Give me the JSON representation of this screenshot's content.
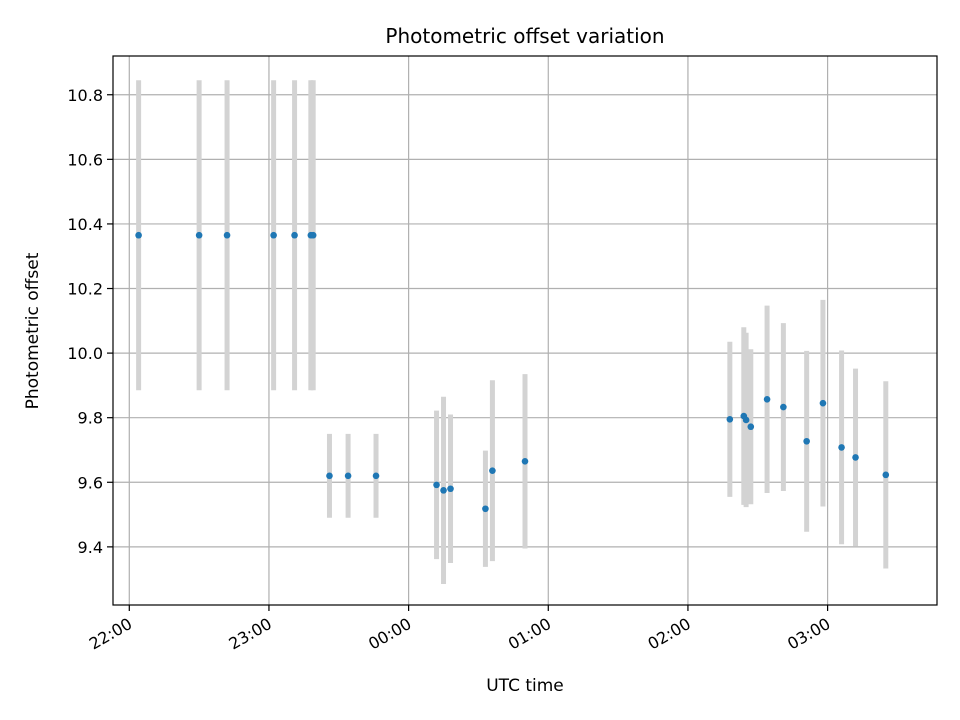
{
  "chart_data": {
    "type": "scatter",
    "title": "Photometric offset variation",
    "xlabel": "UTC time",
    "ylabel": "Photometric offset",
    "grid": true,
    "x_ticks": [
      "22:00",
      "23:00",
      "00:00",
      "01:00",
      "02:00",
      "03:00"
    ],
    "y_ticks": [
      "9.4",
      "9.6",
      "9.8",
      "10.0",
      "10.2",
      "10.4",
      "10.6",
      "10.8"
    ],
    "xlim": [
      "21:53",
      "03:47"
    ],
    "ylim": [
      9.22,
      10.92
    ],
    "colors": {
      "marker": "#1f77b4",
      "errorbar": "#d3d3d3",
      "grid": "#b0b0b0"
    },
    "points": [
      {
        "x": "22:04",
        "y": 10.365,
        "err": 0.48
      },
      {
        "x": "22:30",
        "y": 10.365,
        "err": 0.48
      },
      {
        "x": "22:42",
        "y": 10.365,
        "err": 0.48
      },
      {
        "x": "23:02",
        "y": 10.365,
        "err": 0.48
      },
      {
        "x": "23:11",
        "y": 10.365,
        "err": 0.48
      },
      {
        "x": "23:18",
        "y": 10.365,
        "err": 0.48
      },
      {
        "x": "23:19",
        "y": 10.365,
        "err": 0.48
      },
      {
        "x": "23:26",
        "y": 9.62,
        "err": 0.13
      },
      {
        "x": "23:34",
        "y": 9.62,
        "err": 0.13
      },
      {
        "x": "23:46",
        "y": 9.62,
        "err": 0.13
      },
      {
        "x": "00:12",
        "y": 9.592,
        "err": 0.23
      },
      {
        "x": "00:15",
        "y": 9.575,
        "err": 0.29
      },
      {
        "x": "00:18",
        "y": 9.58,
        "err": 0.23
      },
      {
        "x": "00:33",
        "y": 9.518,
        "err": 0.18
      },
      {
        "x": "00:36",
        "y": 9.636,
        "err": 0.28
      },
      {
        "x": "00:50",
        "y": 9.665,
        "err": 0.27
      },
      {
        "x": "02:18",
        "y": 9.795,
        "err": 0.24
      },
      {
        "x": "02:24",
        "y": 9.805,
        "err": 0.275
      },
      {
        "x": "02:25",
        "y": 9.793,
        "err": 0.27
      },
      {
        "x": "02:27",
        "y": 9.772,
        "err": 0.24
      },
      {
        "x": "02:34",
        "y": 9.857,
        "err": 0.29
      },
      {
        "x": "02:41",
        "y": 9.833,
        "err": 0.26
      },
      {
        "x": "02:51",
        "y": 9.727,
        "err": 0.28
      },
      {
        "x": "02:58",
        "y": 9.845,
        "err": 0.32
      },
      {
        "x": "03:06",
        "y": 9.708,
        "err": 0.3
      },
      {
        "x": "03:12",
        "y": 9.677,
        "err": 0.275
      },
      {
        "x": "03:25",
        "y": 9.623,
        "err": 0.29
      }
    ]
  }
}
